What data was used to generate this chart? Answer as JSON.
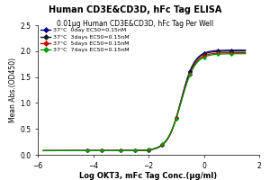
{
  "title": "Human CD3E&CD3D, hFc Tag ELISA",
  "subtitle": "0.01μg Human CD3E&CD3D, hFc Tag Per Well",
  "xlabel": "Log OKT3, mFc Tag Conc.(μg/ml)",
  "ylabel": "Mean Abs.(OD450)",
  "xlim": [
    -6,
    2
  ],
  "ylim": [
    0,
    2.5
  ],
  "yticks": [
    0.0,
    0.5,
    1.0,
    1.5,
    2.0,
    2.5
  ],
  "xticks": [
    -6,
    -4,
    -2,
    0,
    2
  ],
  "series": [
    {
      "label": "37°C  0day EC50=0.15nM",
      "color": "#00008B",
      "marker": "D",
      "ec50": -0.824,
      "bottom": 0.08,
      "top": 2.02,
      "hill": 1.8
    },
    {
      "label": "37°C  3days EC50=0.15nM",
      "color": "#1a1a1a",
      "marker": "D",
      "ec50": -0.824,
      "bottom": 0.08,
      "top": 2.0,
      "hill": 1.8
    },
    {
      "label": "37°C  5days EC50=0.15nM",
      "color": "#CC0000",
      "marker": "D",
      "ec50": -0.824,
      "bottom": 0.08,
      "top": 1.97,
      "hill": 1.75
    },
    {
      "label": "37°C  7days EC50=0.15nM",
      "color": "#009900",
      "marker": "D",
      "ec50": -0.824,
      "bottom": 0.08,
      "top": 1.95,
      "hill": 1.72
    }
  ],
  "data_points_x": [
    -4.2,
    -3.7,
    -3.0,
    -2.5,
    -2.0,
    -1.5,
    -1.0,
    -0.5,
    0.0,
    0.5,
    1.0
  ],
  "title_fontsize": 7.0,
  "subtitle_fontsize": 5.5,
  "xlabel_fontsize": 6.0,
  "ylabel_fontsize": 5.5,
  "tick_fontsize": 5.5,
  "legend_fontsize": 4.5,
  "background_color": "#ffffff"
}
